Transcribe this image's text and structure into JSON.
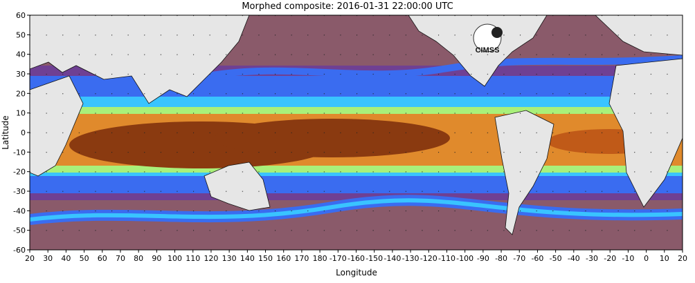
{
  "title": "Morphed composite: 2016-01-31 22:00:00 UTC",
  "axes": {
    "x_label": "Longitude",
    "y_label": "Latitude",
    "x_ticks": [
      "20",
      "30",
      "40",
      "50",
      "60",
      "70",
      "80",
      "90",
      "100",
      "110",
      "120",
      "130",
      "140",
      "150",
      "160",
      "170",
      "180",
      "-170",
      "-160",
      "-150",
      "-140",
      "-130",
      "-120",
      "-110",
      "-100",
      "-90",
      "-80",
      "-70",
      "-60",
      "-50",
      "-40",
      "-30",
      "-20",
      "-10",
      "0",
      "10",
      "20"
    ],
    "y_ticks": [
      "60",
      "50",
      "40",
      "30",
      "20",
      "10",
      "0",
      "-10",
      "-20",
      "-30",
      "-40",
      "-50",
      "-60"
    ]
  },
  "logo": {
    "text": "CIMSS"
  },
  "colors": {
    "land": "#e6e6e6",
    "dry": "#8a5a6a",
    "low": "#3a6cf0",
    "mid": "#39c4ff",
    "high": "#a9f07a",
    "very_high": "#e08a2c",
    "max": "#8a3a10"
  }
}
